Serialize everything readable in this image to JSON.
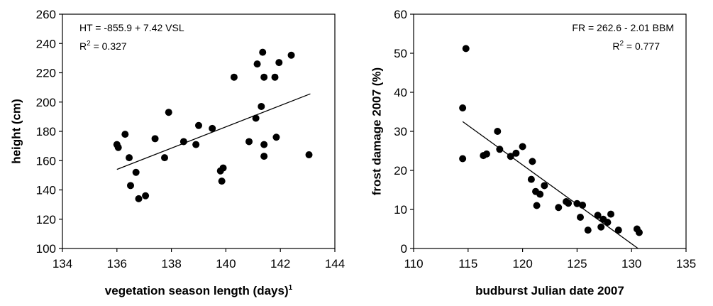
{
  "chart_data": [
    {
      "type": "scatter",
      "xlabel": "vegetation season length (days)",
      "xlabel_superscript": "1",
      "ylabel": "height (cm)",
      "xlim": [
        134,
        144
      ],
      "ylim": [
        100,
        260
      ],
      "xticks": [
        "134",
        "136",
        "138",
        "140",
        "142",
        "144"
      ],
      "yticks": [
        "100",
        "120",
        "140",
        "160",
        "180",
        "200",
        "220",
        "240",
        "260"
      ],
      "annotation_line1": "HT = -855.9 + 7.42 VSL",
      "annotation_line2_prefix": "R",
      "annotation_line2_sup": "2",
      "annotation_line2_suffix": " = 0.327",
      "annotation_position": "top-left",
      "grid": false,
      "regression": {
        "x": [
          136,
          143.1
        ],
        "y": [
          154,
          205.6
        ]
      },
      "points": [
        [
          136.0,
          171
        ],
        [
          136.05,
          169
        ],
        [
          136.3,
          178
        ],
        [
          136.45,
          162
        ],
        [
          136.5,
          143
        ],
        [
          136.7,
          152
        ],
        [
          136.8,
          134
        ],
        [
          137.05,
          136
        ],
        [
          137.4,
          175
        ],
        [
          137.75,
          162
        ],
        [
          137.9,
          193
        ],
        [
          138.45,
          173
        ],
        [
          138.9,
          171
        ],
        [
          139.0,
          184
        ],
        [
          139.5,
          182
        ],
        [
          139.8,
          153
        ],
        [
          139.85,
          146
        ],
        [
          139.9,
          155
        ],
        [
          140.3,
          217
        ],
        [
          140.85,
          173
        ],
        [
          141.1,
          189
        ],
        [
          141.15,
          226
        ],
        [
          141.3,
          197
        ],
        [
          141.35,
          234
        ],
        [
          141.4,
          217
        ],
        [
          141.4,
          171
        ],
        [
          141.4,
          163
        ],
        [
          141.8,
          217
        ],
        [
          141.85,
          176
        ],
        [
          141.95,
          227
        ],
        [
          142.4,
          232
        ],
        [
          143.05,
          164
        ]
      ]
    },
    {
      "type": "scatter",
      "xlabel": "budburst Julian date 2007",
      "ylabel": "frost damage 2007 (%)",
      "xlim": [
        110,
        135
      ],
      "ylim": [
        0,
        60
      ],
      "xticks": [
        "110",
        "115",
        "120",
        "125",
        "130",
        "135"
      ],
      "yticks": [
        "0",
        "10",
        "20",
        "30",
        "40",
        "50",
        "60"
      ],
      "annotation_line1": "FR = 262.6 -  2.01 BBM",
      "annotation_line2_prefix": "R",
      "annotation_line2_sup": "2",
      "annotation_line2_suffix": " = 0.777",
      "annotation_position": "top-right",
      "grid": false,
      "regression": {
        "x": [
          114.5,
          130.6
        ],
        "y": [
          32.5,
          0
        ]
      },
      "points": [
        [
          114.8,
          51.2
        ],
        [
          114.5,
          36
        ],
        [
          114.5,
          23
        ],
        [
          116.4,
          23.8
        ],
        [
          116.7,
          24.2
        ],
        [
          117.7,
          30
        ],
        [
          117.9,
          25.4
        ],
        [
          118.9,
          23.6
        ],
        [
          119.4,
          24.4
        ],
        [
          120.0,
          26.1
        ],
        [
          120.8,
          17.7
        ],
        [
          120.9,
          22.3
        ],
        [
          121.2,
          14.6
        ],
        [
          121.3,
          11
        ],
        [
          121.6,
          13.9
        ],
        [
          122.0,
          16.1
        ],
        [
          123.3,
          10.5
        ],
        [
          124.0,
          12
        ],
        [
          124.2,
          11.6
        ],
        [
          125.0,
          11.5
        ],
        [
          125.3,
          8
        ],
        [
          125.5,
          11.1
        ],
        [
          126.0,
          4.7
        ],
        [
          126.9,
          8.5
        ],
        [
          127.2,
          5.5
        ],
        [
          127.4,
          7.5
        ],
        [
          127.8,
          6.7
        ],
        [
          128.1,
          8.8
        ],
        [
          128.8,
          4.7
        ],
        [
          130.5,
          5
        ],
        [
          130.7,
          4.1
        ]
      ]
    }
  ]
}
